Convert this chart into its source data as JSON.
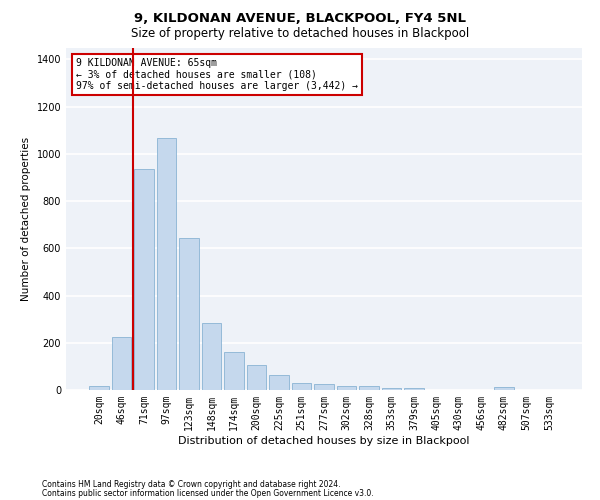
{
  "title": "9, KILDONAN AVENUE, BLACKPOOL, FY4 5NL",
  "subtitle": "Size of property relative to detached houses in Blackpool",
  "xlabel": "Distribution of detached houses by size in Blackpool",
  "ylabel": "Number of detached properties",
  "categories": [
    "20sqm",
    "46sqm",
    "71sqm",
    "97sqm",
    "123sqm",
    "148sqm",
    "174sqm",
    "200sqm",
    "225sqm",
    "251sqm",
    "277sqm",
    "302sqm",
    "328sqm",
    "353sqm",
    "379sqm",
    "405sqm",
    "430sqm",
    "456sqm",
    "482sqm",
    "507sqm",
    "533sqm"
  ],
  "values": [
    15,
    225,
    935,
    1065,
    645,
    285,
    160,
    105,
    65,
    30,
    25,
    18,
    15,
    10,
    8,
    0,
    0,
    0,
    12,
    0,
    0
  ],
  "bar_color": "#c5d8ed",
  "bar_edge_color": "#8ab4d4",
  "vline_x_index": 1.5,
  "vline_color": "#cc0000",
  "annotation_text": "9 KILDONAN AVENUE: 65sqm\n← 3% of detached houses are smaller (108)\n97% of semi-detached houses are larger (3,442) →",
  "annotation_box_color": "#ffffff",
  "annotation_box_edge_color": "#cc0000",
  "footer_line1": "Contains HM Land Registry data © Crown copyright and database right 2024.",
  "footer_line2": "Contains public sector information licensed under the Open Government Licence v3.0.",
  "ylim": [
    0,
    1450
  ],
  "yticks": [
    0,
    200,
    400,
    600,
    800,
    1000,
    1200,
    1400
  ],
  "bg_color": "#eef2f8",
  "grid_color": "#ffffff",
  "title_fontsize": 9.5,
  "subtitle_fontsize": 8.5,
  "tick_fontsize": 7,
  "ylabel_fontsize": 7.5,
  "xlabel_fontsize": 8,
  "annotation_fontsize": 7,
  "footer_fontsize": 5.5
}
